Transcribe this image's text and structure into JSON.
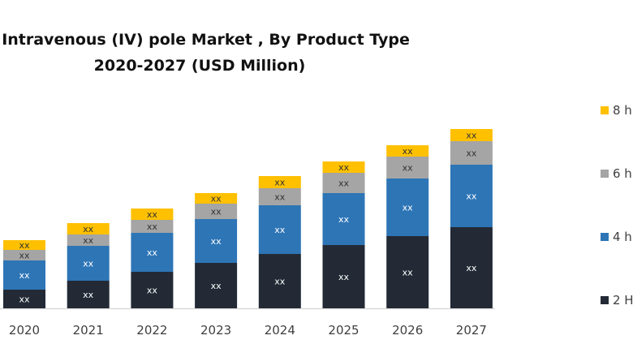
{
  "chart_data": {
    "type": "bar",
    "stacked": true,
    "title_line1": "l Intravenous (IV) pole Market , By Product Type",
    "title_line2": "2020-2027 (USD Million)",
    "categories": [
      "2020",
      "2021",
      "2022",
      "2023",
      "2024",
      "2025",
      "2026",
      "2027"
    ],
    "series": [
      {
        "name": "2 H",
        "color": "#232a36",
        "values": [
          23,
          34,
          45,
          56,
          67,
          78,
          89,
          100
        ]
      },
      {
        "name": "4 h",
        "color": "#2e75b6",
        "values": [
          36,
          43,
          48,
          54,
          60,
          64,
          71,
          77
        ]
      },
      {
        "name": "6 h",
        "color": "#a5a5a5",
        "values": [
          13,
          14,
          16,
          19,
          21,
          25,
          27,
          29
        ]
      },
      {
        "name": "8 h",
        "color": "#ffc000",
        "values": [
          12,
          14,
          14,
          13,
          15,
          14,
          14,
          15
        ]
      }
    ],
    "data_label": "xx",
    "legend_position": "right",
    "grid": false,
    "y_axis_shown": false
  }
}
